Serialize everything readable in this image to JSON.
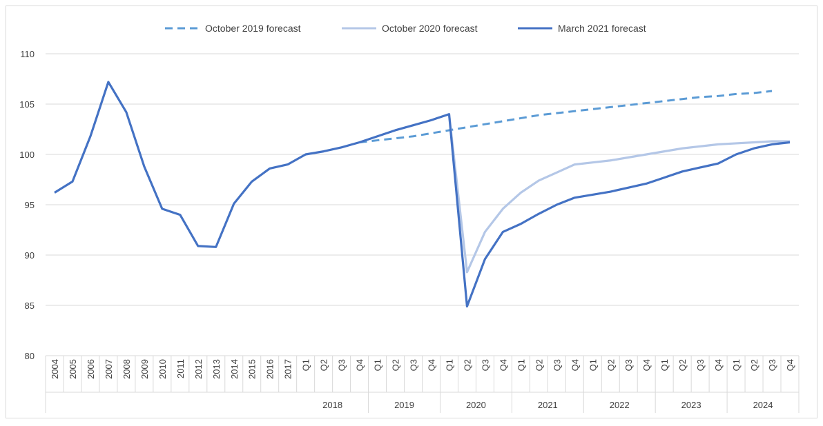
{
  "chart_data": {
    "type": "line",
    "title": "",
    "xlabel": "",
    "ylabel": "",
    "ylim": [
      80,
      110
    ],
    "yticks": [
      80,
      85,
      90,
      95,
      100,
      105,
      110
    ],
    "grid": true,
    "legend_position": "top",
    "annual_labels": [
      "2004",
      "2005",
      "2006",
      "2007",
      "2008",
      "2009",
      "2010",
      "2011",
      "2012",
      "2013",
      "2014",
      "2015",
      "2016",
      "2017"
    ],
    "quarter_groups": [
      {
        "year": "2018",
        "quarters": [
          "Q1",
          "Q2",
          "Q3",
          "Q4"
        ]
      },
      {
        "year": "2019",
        "quarters": [
          "Q1",
          "Q2",
          "Q3",
          "Q4"
        ]
      },
      {
        "year": "2020",
        "quarters": [
          "Q1",
          "Q2",
          "Q3",
          "Q4"
        ]
      },
      {
        "year": "2021",
        "quarters": [
          "Q1",
          "Q2",
          "Q3",
          "Q4"
        ]
      },
      {
        "year": "2022",
        "quarters": [
          "Q1",
          "Q2",
          "Q3",
          "Q4"
        ]
      },
      {
        "year": "2023",
        "quarters": [
          "Q1",
          "Q2",
          "Q3",
          "Q4"
        ]
      },
      {
        "year": "2024",
        "quarters": [
          "Q1",
          "Q2",
          "Q3",
          "Q4"
        ]
      }
    ],
    "series": [
      {
        "name": "October 2019 forecast",
        "color": "#5b9bd5",
        "style": "dashed",
        "start_index": 17,
        "values": [
          101.2,
          101.4,
          101.6,
          101.8,
          102.1,
          102.4,
          102.7,
          103.0,
          103.3,
          103.6,
          103.9,
          104.1,
          104.3,
          104.5,
          104.7,
          104.9,
          105.1,
          105.3,
          105.5,
          105.7,
          105.8,
          106.0,
          106.1,
          106.3
        ]
      },
      {
        "name": "October 2020 forecast",
        "color": "#b4c7e7",
        "style": "solid",
        "start_index": 22,
        "values": [
          104.0,
          88.3,
          92.3,
          94.6,
          96.2,
          97.4,
          98.2,
          99.0,
          99.2,
          99.4,
          99.7,
          100.0,
          100.3,
          100.6,
          100.8,
          101.0,
          101.1,
          101.2,
          101.3,
          101.3
        ]
      },
      {
        "name": "March 2021 forecast",
        "color": "#4472c4",
        "style": "solid",
        "start_index": 0,
        "values": [
          96.2,
          97.3,
          101.8,
          107.2,
          104.2,
          98.8,
          94.6,
          94.0,
          90.9,
          90.8,
          95.1,
          97.3,
          98.6,
          99.0,
          100.0,
          100.3,
          100.7,
          101.2,
          101.8,
          102.4,
          102.9,
          103.4,
          104.0,
          84.9,
          89.6,
          92.3,
          93.1,
          94.1,
          95.0,
          95.7,
          96.0,
          96.3,
          96.7,
          97.1,
          97.7,
          98.3,
          98.7,
          99.1,
          100.0,
          100.6,
          101.0,
          101.2
        ]
      }
    ]
  }
}
